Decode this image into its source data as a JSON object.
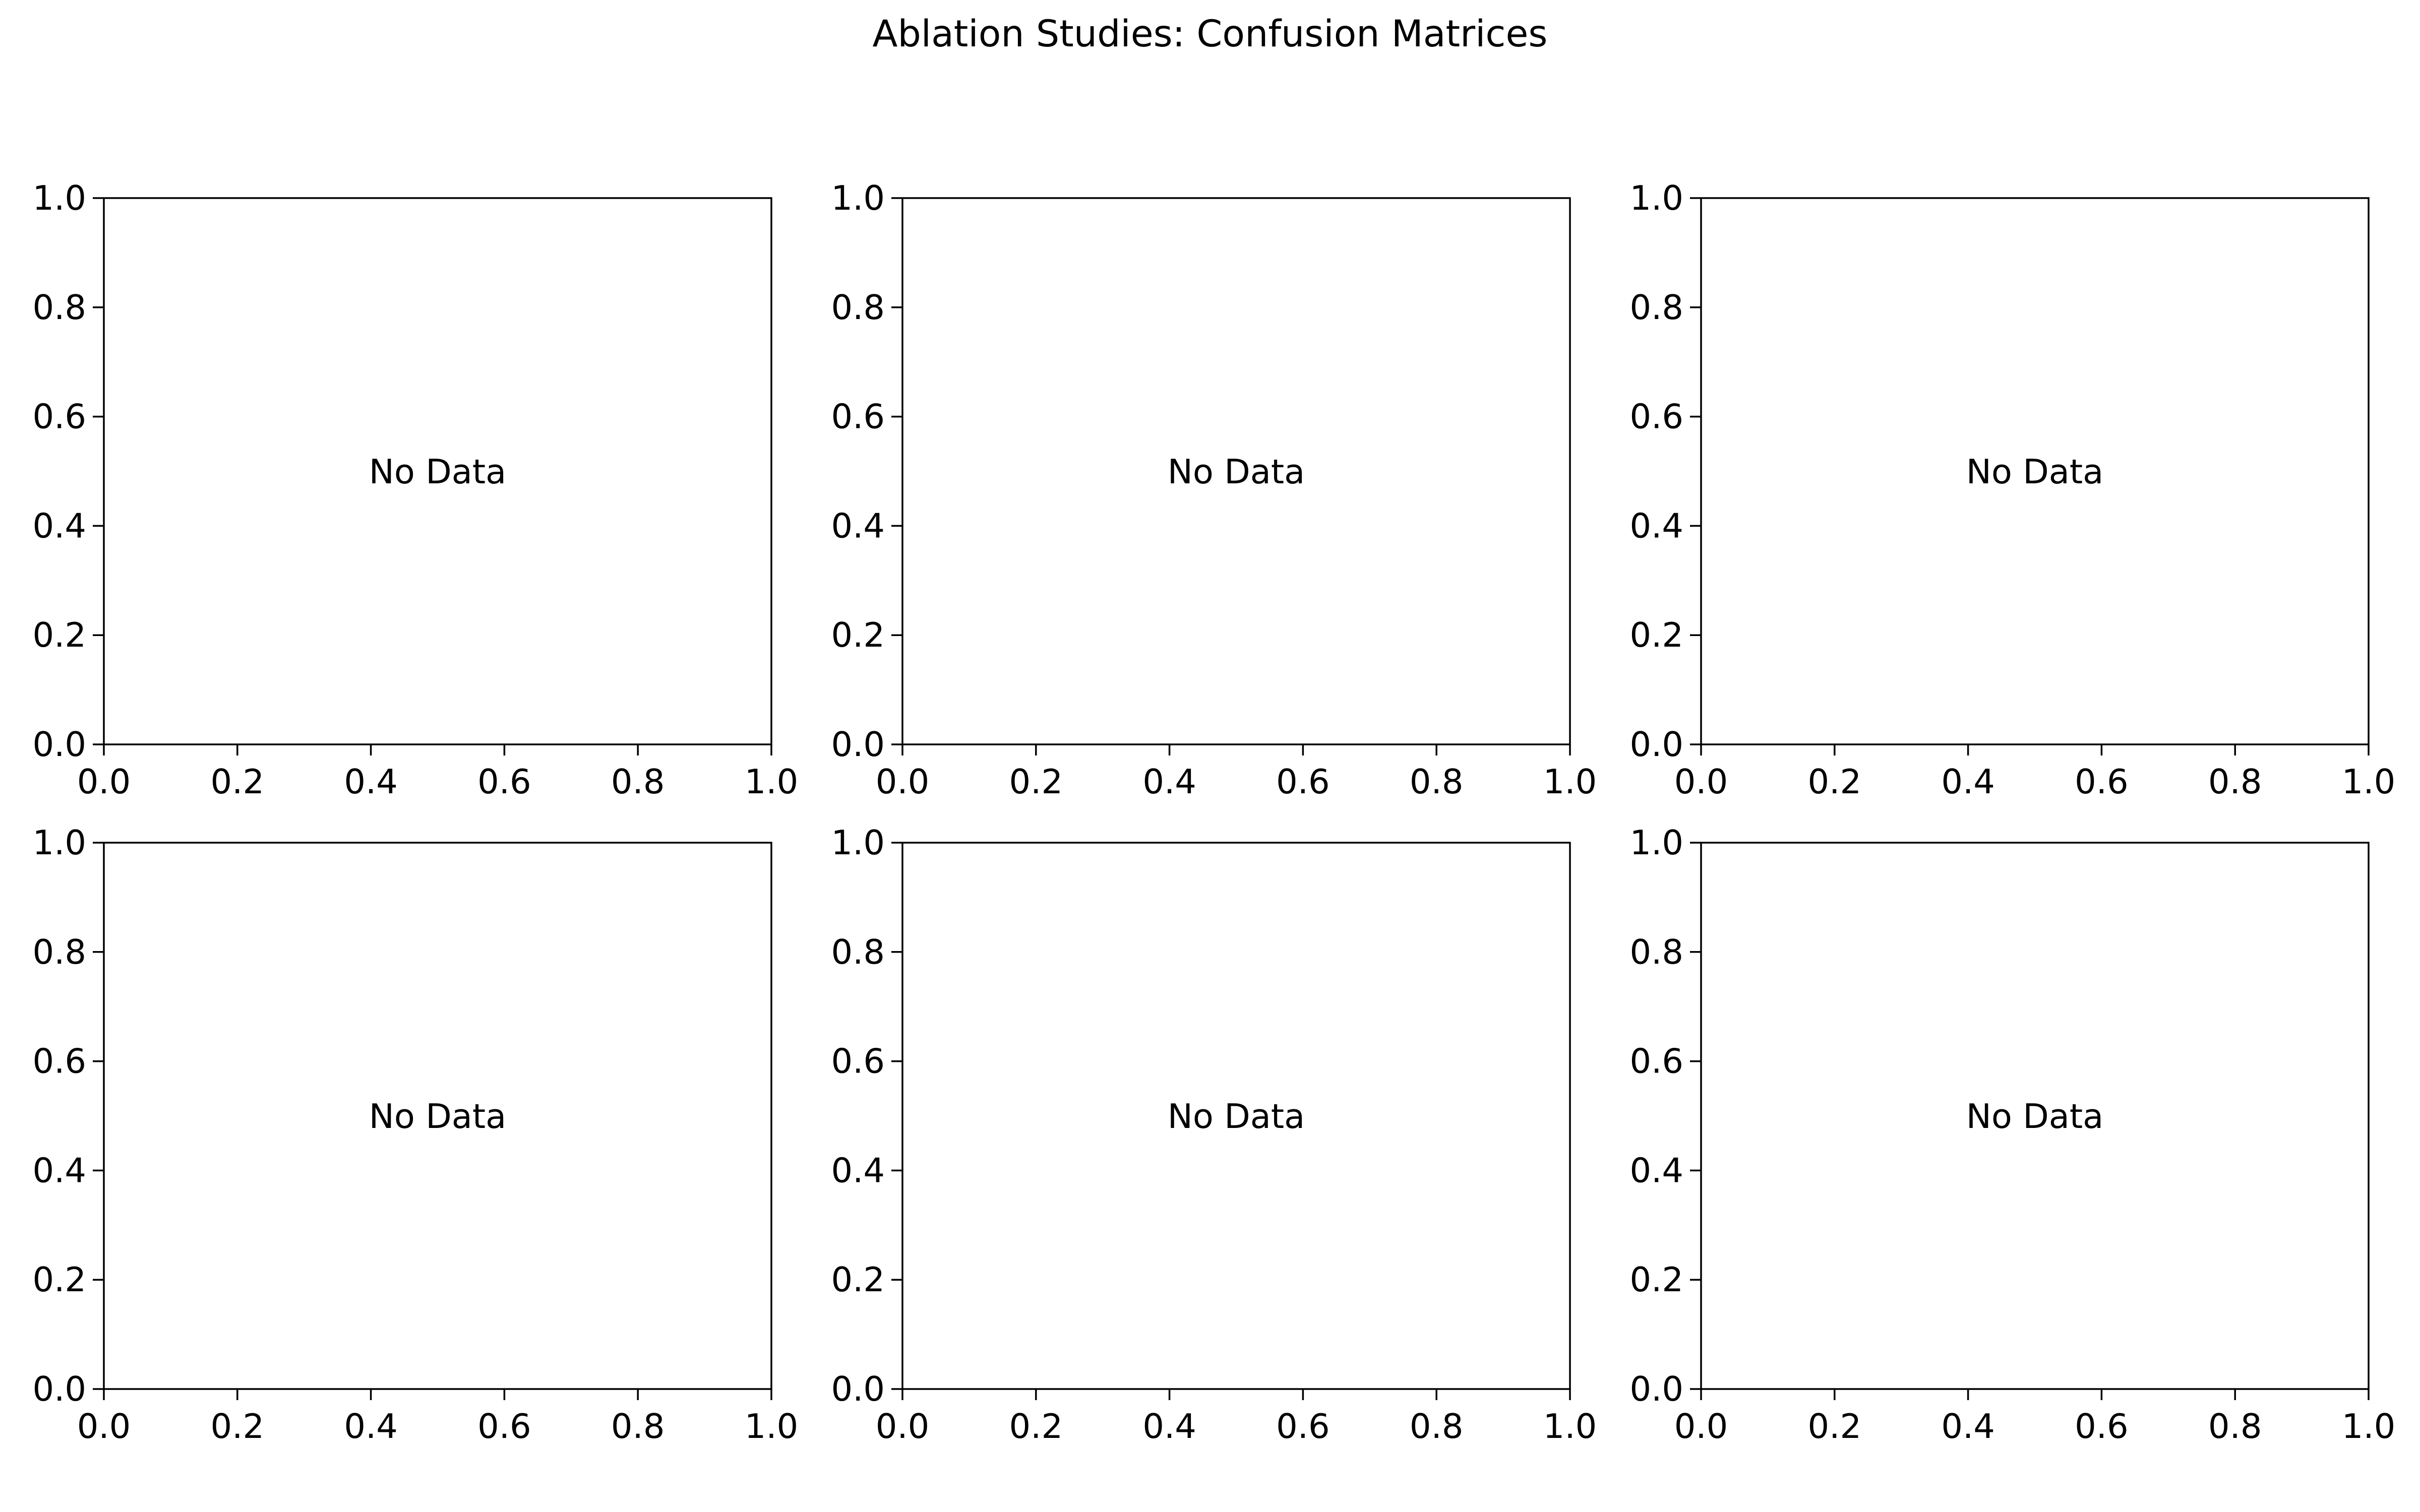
{
  "figure": {
    "title": "Ablation Studies: Confusion Matrices"
  },
  "chart_data": [
    {
      "type": "heatmap",
      "row": 1,
      "col": 1,
      "annotation": "No Data",
      "xlim": [
        0.0,
        1.0
      ],
      "ylim": [
        0.0,
        1.0
      ],
      "xticks": [
        "0.0",
        "0.2",
        "0.4",
        "0.6",
        "0.8",
        "1.0"
      ],
      "yticks": [
        "0.0",
        "0.2",
        "0.4",
        "0.6",
        "0.8",
        "1.0"
      ],
      "values": [],
      "grid": false
    },
    {
      "type": "heatmap",
      "row": 1,
      "col": 2,
      "annotation": "No Data",
      "xlim": [
        0.0,
        1.0
      ],
      "ylim": [
        0.0,
        1.0
      ],
      "xticks": [
        "0.0",
        "0.2",
        "0.4",
        "0.6",
        "0.8",
        "1.0"
      ],
      "yticks": [
        "0.0",
        "0.2",
        "0.4",
        "0.6",
        "0.8",
        "1.0"
      ],
      "values": [],
      "grid": false
    },
    {
      "type": "heatmap",
      "row": 1,
      "col": 3,
      "annotation": "No Data",
      "xlim": [
        0.0,
        1.0
      ],
      "ylim": [
        0.0,
        1.0
      ],
      "xticks": [
        "0.0",
        "0.2",
        "0.4",
        "0.6",
        "0.8",
        "1.0"
      ],
      "yticks": [
        "0.0",
        "0.2",
        "0.4",
        "0.6",
        "0.8",
        "1.0"
      ],
      "values": [],
      "grid": false
    },
    {
      "type": "heatmap",
      "row": 2,
      "col": 1,
      "annotation": "No Data",
      "xlim": [
        0.0,
        1.0
      ],
      "ylim": [
        0.0,
        1.0
      ],
      "xticks": [
        "0.0",
        "0.2",
        "0.4",
        "0.6",
        "0.8",
        "1.0"
      ],
      "yticks": [
        "0.0",
        "0.2",
        "0.4",
        "0.6",
        "0.8",
        "1.0"
      ],
      "values": [],
      "grid": false
    },
    {
      "type": "heatmap",
      "row": 2,
      "col": 2,
      "annotation": "No Data",
      "xlim": [
        0.0,
        1.0
      ],
      "ylim": [
        0.0,
        1.0
      ],
      "xticks": [
        "0.0",
        "0.2",
        "0.4",
        "0.6",
        "0.8",
        "1.0"
      ],
      "yticks": [
        "0.0",
        "0.2",
        "0.4",
        "0.6",
        "0.8",
        "1.0"
      ],
      "values": [],
      "grid": false
    },
    {
      "type": "heatmap",
      "row": 2,
      "col": 3,
      "annotation": "No Data",
      "xlim": [
        0.0,
        1.0
      ],
      "ylim": [
        0.0,
        1.0
      ],
      "xticks": [
        "0.0",
        "0.2",
        "0.4",
        "0.6",
        "0.8",
        "1.0"
      ],
      "yticks": [
        "0.0",
        "0.2",
        "0.4",
        "0.6",
        "0.8",
        "1.0"
      ],
      "values": [],
      "grid": false
    }
  ]
}
